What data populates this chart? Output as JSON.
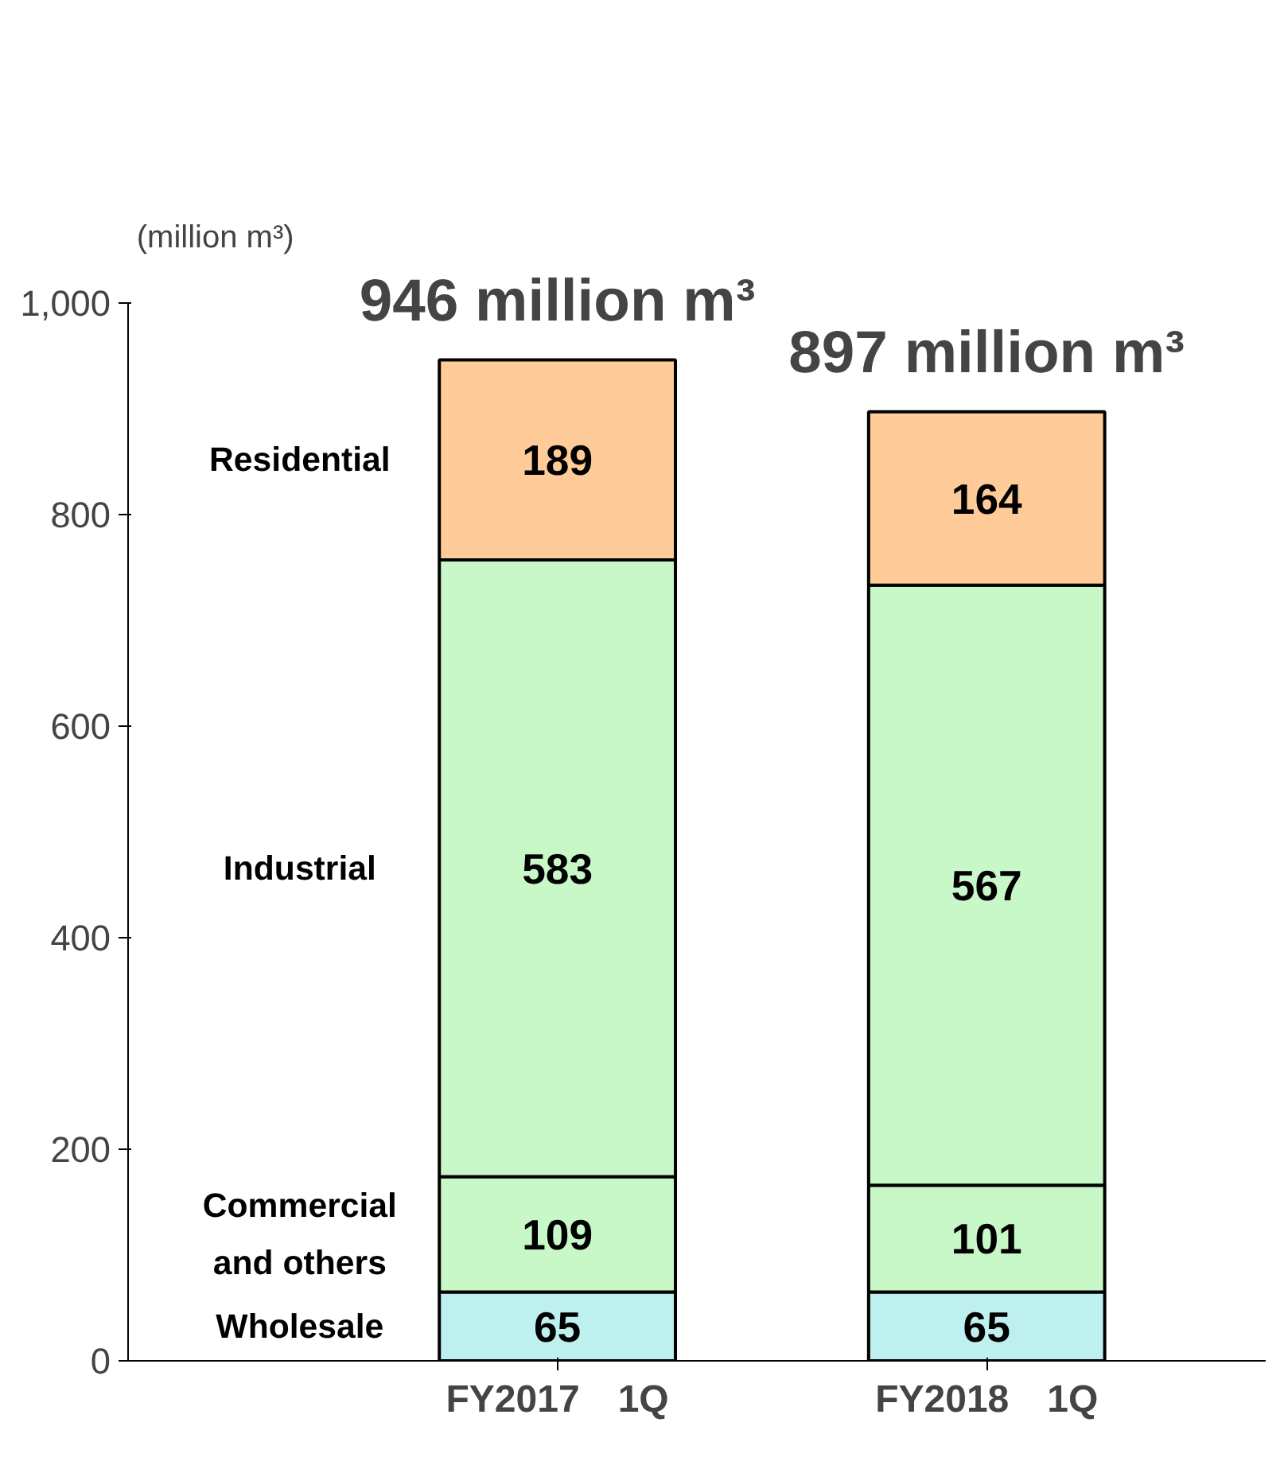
{
  "chart_data": {
    "type": "bar",
    "stacked": true,
    "ylabel": "(million m³)",
    "categories": [
      "FY2017　1Q",
      "FY2018　1Q"
    ],
    "series": [
      {
        "name": "Wholesale",
        "color": "#bff0f0",
        "values": [
          65,
          65
        ]
      },
      {
        "name": "Commercial\nand others",
        "color": "#c8f8c8",
        "values": [
          109,
          101
        ]
      },
      {
        "name": "Industrial",
        "color": "#c8f8c8",
        "values": [
          583,
          567
        ]
      },
      {
        "name": "Residential",
        "color": "#ffcc99",
        "values": [
          189,
          164
        ]
      }
    ],
    "totals": [
      "946 million m³",
      "897 million m³"
    ],
    "data_labels": true,
    "legend": false,
    "grid": false,
    "ylim": [
      0,
      1000
    ],
    "yticks": [
      0,
      200,
      400,
      600,
      800,
      {
        "value": 1000,
        "label": "1,000"
      }
    ]
  }
}
